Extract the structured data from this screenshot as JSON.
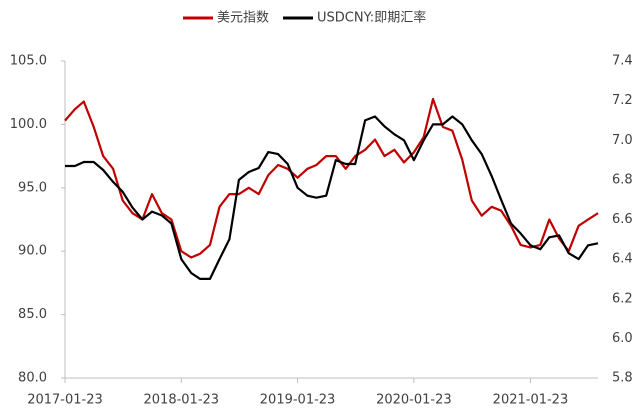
{
  "chart_data": {
    "type": "line",
    "x": [
      "2017-01-23",
      "2017-02-23",
      "2017-03-23",
      "2017-04-23",
      "2017-05-23",
      "2017-06-23",
      "2017-07-23",
      "2017-08-23",
      "2017-09-23",
      "2017-10-23",
      "2017-11-23",
      "2017-12-23",
      "2018-01-23",
      "2018-02-23",
      "2018-03-23",
      "2018-04-23",
      "2018-05-23",
      "2018-06-23",
      "2018-07-23",
      "2018-08-23",
      "2018-09-23",
      "2018-10-23",
      "2018-11-23",
      "2018-12-23",
      "2019-01-23",
      "2019-02-23",
      "2019-03-23",
      "2019-04-23",
      "2019-05-23",
      "2019-06-23",
      "2019-07-23",
      "2019-08-23",
      "2019-09-23",
      "2019-10-23",
      "2019-11-23",
      "2019-12-23",
      "2020-01-23",
      "2020-02-23",
      "2020-03-23",
      "2020-04-23",
      "2020-05-23",
      "2020-06-23",
      "2020-07-23",
      "2020-08-23",
      "2020-09-23",
      "2020-10-23",
      "2020-11-23",
      "2020-12-23",
      "2021-01-23",
      "2021-02-23",
      "2021-03-23",
      "2021-04-23",
      "2021-05-23",
      "2021-06-23",
      "2021-07-23",
      "2021-08-23"
    ],
    "series": [
      {
        "name": "美元指数",
        "color": "#c00000",
        "axis": "y",
        "values": [
          100.3,
          101.2,
          101.8,
          99.8,
          97.5,
          96.5,
          94.0,
          93.0,
          92.5,
          94.5,
          93.0,
          92.5,
          90.0,
          89.5,
          89.8,
          90.5,
          93.5,
          94.5,
          94.5,
          95.0,
          94.5,
          96.0,
          96.8,
          96.5,
          95.8,
          96.5,
          96.8,
          97.5,
          97.5,
          96.5,
          97.5,
          98.0,
          98.8,
          97.5,
          98.0,
          97.0,
          97.8,
          99.0,
          102.0,
          99.8,
          99.5,
          97.2,
          94.0,
          92.8,
          93.5,
          93.2,
          92.0,
          90.5,
          90.3,
          90.5,
          92.5,
          91.0,
          90.0,
          92.0,
          92.5,
          93.0
        ]
      },
      {
        "name": "USDCNY:即期汇率",
        "color": "#000000",
        "axis": "y2",
        "values": [
          6.87,
          6.87,
          6.89,
          6.89,
          6.85,
          6.79,
          6.74,
          6.66,
          6.6,
          6.64,
          6.62,
          6.58,
          6.4,
          6.33,
          6.3,
          6.3,
          6.4,
          6.5,
          6.8,
          6.84,
          6.86,
          6.94,
          6.93,
          6.88,
          6.76,
          6.72,
          6.71,
          6.72,
          6.9,
          6.88,
          6.88,
          7.1,
          7.12,
          7.07,
          7.03,
          7.0,
          6.9,
          7.0,
          7.08,
          7.08,
          7.12,
          7.08,
          7.0,
          6.93,
          6.82,
          6.7,
          6.58,
          6.53,
          6.47,
          6.45,
          6.51,
          6.52,
          6.43,
          6.4,
          6.47,
          6.48
        ]
      }
    ],
    "xlim": [
      "2017-01-23",
      "2021-08-23"
    ],
    "xticks": [
      "2017-01-23",
      "2018-01-23",
      "2019-01-23",
      "2020-01-23",
      "2021-01-23"
    ],
    "ylim": [
      80,
      105
    ],
    "yticks": [
      {
        "value": 80,
        "label": "80.0"
      },
      {
        "value": 85,
        "label": "85.0"
      },
      {
        "value": 90,
        "label": "90.0"
      },
      {
        "value": 95,
        "label": "95.0"
      },
      {
        "value": 100,
        "label": "100.0"
      },
      {
        "value": 105,
        "label": "105.0"
      }
    ],
    "y2lim": [
      5.8,
      7.4
    ],
    "y2ticks": [
      5.8,
      {
        "value": 6,
        "label": "6.0"
      },
      6.2,
      6.4,
      6.6,
      6.8,
      {
        "value": 7,
        "label": "7.0"
      },
      7.2,
      7.4
    ],
    "legend": "top"
  }
}
